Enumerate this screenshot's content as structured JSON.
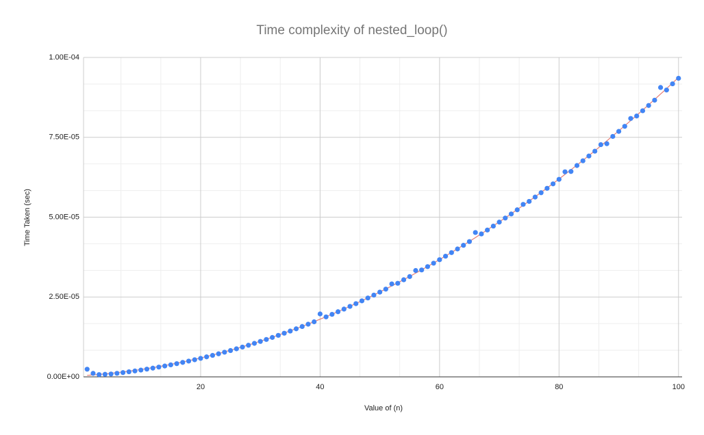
{
  "chart_data": {
    "type": "scatter",
    "title": "Time complexity of nested_loop()",
    "x_label": "Value of (n)",
    "y_label": "Time Taken (sec)",
    "xlim": [
      0.4,
      100.6
    ],
    "xticks": [
      20,
      40,
      60,
      80,
      100
    ],
    "ylim": [
      0,
      0.0001
    ],
    "yticks": [
      {
        "value": 0,
        "label": "0.00E+00"
      },
      {
        "value": 2.5e-05,
        "label": "2.50E-05"
      },
      {
        "value": 5e-05,
        "label": "5.00E-05"
      },
      {
        "value": 7.5e-05,
        "label": "7.50E-05"
      },
      {
        "value": 0.0001,
        "label": "1.00E-04"
      }
    ],
    "grid": true,
    "trendline": {
      "type": "polynomial",
      "degree": 2,
      "color": "#e67c73"
    },
    "series": [
      {
        "name": "Time Taken (sec)",
        "color": "#4285f4",
        "x": [
          1,
          2,
          3,
          4,
          5,
          6,
          7,
          8,
          9,
          10,
          11,
          12,
          13,
          14,
          15,
          16,
          17,
          18,
          19,
          20,
          21,
          22,
          23,
          24,
          25,
          26,
          27,
          28,
          29,
          30,
          31,
          32,
          33,
          34,
          35,
          36,
          37,
          38,
          39,
          40,
          41,
          42,
          43,
          44,
          45,
          46,
          47,
          48,
          49,
          50,
          51,
          52,
          53,
          54,
          55,
          56,
          57,
          58,
          59,
          60,
          61,
          62,
          63,
          64,
          65,
          66,
          67,
          68,
          69,
          70,
          71,
          72,
          73,
          74,
          75,
          76,
          77,
          78,
          79,
          80,
          81,
          82,
          83,
          84,
          85,
          86,
          87,
          88,
          89,
          90,
          91,
          92,
          93,
          94,
          95,
          96,
          97,
          98,
          99,
          100
        ],
        "values": [
          2.4e-06,
          1.1e-06,
          7e-07,
          8e-07,
          9e-07,
          1.11e-06,
          1.34e-06,
          1.59e-06,
          1.85e-06,
          2.13e-06,
          2.42e-06,
          2.73e-06,
          3.06e-06,
          3.4e-06,
          3.76e-06,
          4.14e-06,
          4.53e-06,
          4.94e-06,
          5.36e-06,
          5.8e-06,
          6.26e-06,
          6.73e-06,
          7.22e-06,
          7.72e-06,
          8.24e-06,
          8.78e-06,
          9.33e-06,
          9.9e-06,
          1.049e-05,
          1.109e-05,
          1.171e-05,
          1.234e-05,
          1.299e-05,
          1.366e-05,
          1.434e-05,
          1.504e-05,
          1.576e-05,
          1.649e-05,
          1.724e-05,
          1.97e-05,
          1.878e-05,
          1.958e-05,
          2.039e-05,
          2.122e-05,
          2.206e-05,
          2.292e-05,
          2.38e-05,
          2.469e-05,
          2.56e-05,
          2.653e-05,
          2.747e-05,
          2.91e-05,
          2.93e-05,
          3.04e-05,
          3.14e-05,
          3.33e-05,
          3.347e-05,
          3.452e-05,
          3.559e-05,
          3.668e-05,
          3.778e-05,
          3.89e-05,
          4.004e-05,
          4.119e-05,
          4.236e-05,
          4.52e-05,
          4.475e-05,
          4.597e-05,
          4.72e-05,
          4.845e-05,
          4.972e-05,
          5.1e-05,
          5.23e-05,
          5.4e-05,
          5.494e-05,
          5.629e-05,
          5.765e-05,
          5.903e-05,
          6.043e-05,
          6.184e-05,
          6.42e-05,
          6.43e-05,
          6.617e-05,
          6.765e-05,
          6.914e-05,
          7.065e-05,
          7.27e-05,
          7.3e-05,
          7.528e-05,
          7.685e-05,
          7.844e-05,
          8.09e-05,
          8.167e-05,
          8.331e-05,
          8.496e-05,
          8.663e-05,
          9.06e-05,
          8.98e-05,
          9.174e-05,
          9.348e-05
        ]
      }
    ]
  }
}
